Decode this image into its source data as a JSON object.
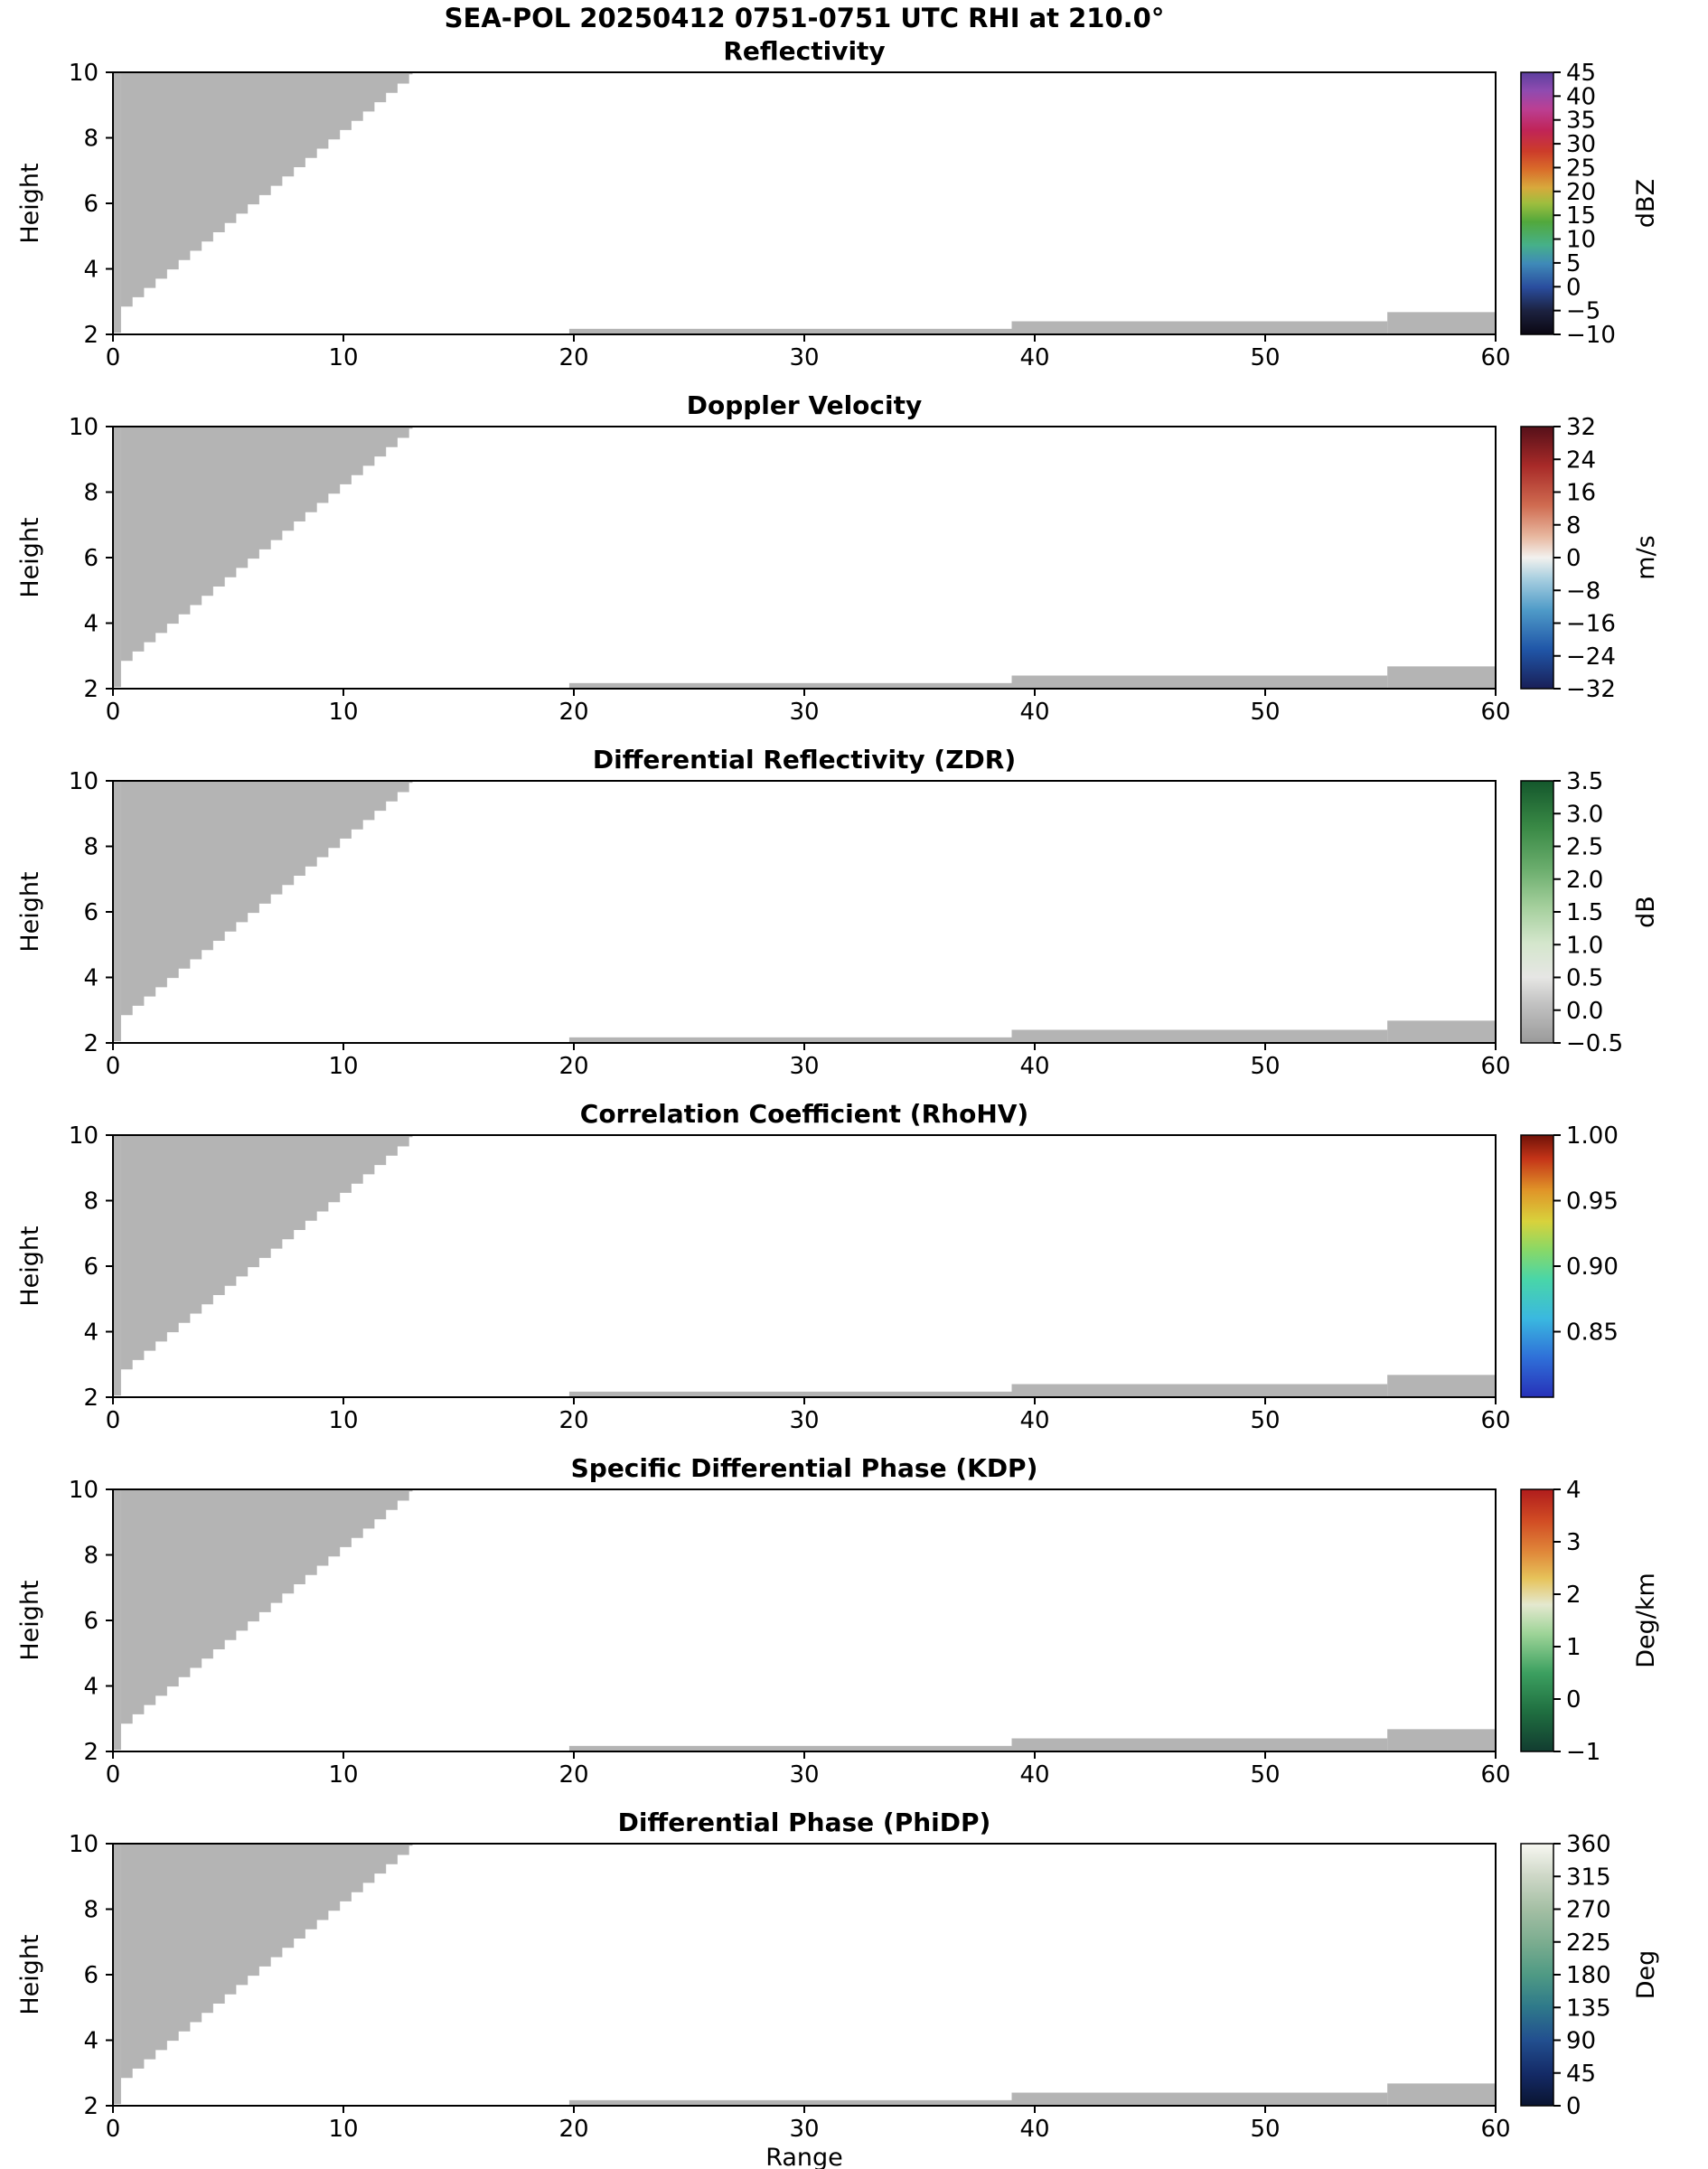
{
  "suptitle": "SEA-POL 20250412 0751-0751 UTC RHI at 210.0°",
  "chart_data": {
    "type": "heatmap",
    "description": "Radar RHI quicklook with 6 vertically stacked panels sharing x (Range 0-60) and y (Height 2-10). Only gray no-data mask regions are visible: a stepped wedge in the upper-left and thin ground strips near the bottom right. Each panel has its own colorbar.",
    "xlabel": "Range",
    "ylabel": "Height",
    "xlim": [
      0,
      60
    ],
    "ylim": [
      2,
      10
    ],
    "xticks": [
      0,
      10,
      20,
      30,
      40,
      50,
      60
    ],
    "yticks": [
      2,
      4,
      6,
      8,
      10
    ],
    "mask_color": "#b4b4b4",
    "mask_regions": {
      "left_wedge": {
        "x_start": 0.35,
        "y_start": 2.85,
        "slope": 0.567,
        "x_end": 13,
        "y_top": 10,
        "step": 0.5
      },
      "left_column": {
        "x": [
          0,
          0.35
        ],
        "y": [
          2.05,
          10
        ]
      },
      "ground_strips": [
        {
          "x": [
            19.8,
            39.0
          ],
          "y": [
            2.0,
            2.17
          ]
        },
        {
          "x": [
            39.0,
            55.3
          ],
          "y": [
            2.0,
            2.4
          ]
        },
        {
          "x": [
            55.3,
            60.0
          ],
          "y": [
            2.0,
            2.68
          ]
        }
      ]
    },
    "panels": [
      {
        "title": "Reflectivity",
        "units": "dBZ",
        "vmin": -10,
        "vmax": 45,
        "tick_values": [
          45,
          40,
          35,
          30,
          25,
          20,
          15,
          10,
          5,
          0,
          -5,
          -10
        ],
        "tick_labels": [
          "45",
          "40",
          "35",
          "30",
          "25",
          "20",
          "15",
          "10",
          "5",
          "0",
          "−5",
          "−10"
        ],
        "gradient": [
          [
            0,
            "#0b0712"
          ],
          [
            0.09,
            "#1c2240"
          ],
          [
            0.18,
            "#2a4d9e"
          ],
          [
            0.27,
            "#3f8ab8"
          ],
          [
            0.34,
            "#46b08a"
          ],
          [
            0.43,
            "#52a83c"
          ],
          [
            0.5,
            "#9ebe3e"
          ],
          [
            0.56,
            "#d8a93c"
          ],
          [
            0.63,
            "#d96c2a"
          ],
          [
            0.7,
            "#cc3b2a"
          ],
          [
            0.78,
            "#c02458"
          ],
          [
            0.86,
            "#bb3f93"
          ],
          [
            0.93,
            "#8f4bb0"
          ],
          [
            1,
            "#5c3f9e"
          ]
        ]
      },
      {
        "title": "Doppler Velocity",
        "units": "m/s",
        "vmin": -32,
        "vmax": 32,
        "tick_values": [
          32,
          24,
          16,
          8,
          0,
          -8,
          -16,
          -24,
          -32
        ],
        "tick_labels": [
          "32",
          "24",
          "16",
          "8",
          "0",
          "−8",
          "−16",
          "−24",
          "−32"
        ],
        "gradient": [
          [
            0,
            "#191f57"
          ],
          [
            0.15,
            "#2056a8"
          ],
          [
            0.3,
            "#4f9bc8"
          ],
          [
            0.42,
            "#a8cfe0"
          ],
          [
            0.5,
            "#f2f1ee"
          ],
          [
            0.58,
            "#e8b8a0"
          ],
          [
            0.7,
            "#cf6b50"
          ],
          [
            0.85,
            "#a82a28"
          ],
          [
            1,
            "#551019"
          ]
        ]
      },
      {
        "title": "Differential Reflectivity (ZDR)",
        "units": "dB",
        "vmin": -0.5,
        "vmax": 3.5,
        "tick_values": [
          3.5,
          3.0,
          2.5,
          2.0,
          1.5,
          1.0,
          0.5,
          0.0,
          -0.5
        ],
        "tick_labels": [
          "3.5",
          "3.0",
          "2.5",
          "2.0",
          "1.5",
          "1.0",
          "0.5",
          "0.0",
          "−0.5"
        ],
        "gradient": [
          [
            0,
            "#9a9a9a"
          ],
          [
            0.15,
            "#c2c2c2"
          ],
          [
            0.25,
            "#e6e6e4"
          ],
          [
            0.38,
            "#d4e6cc"
          ],
          [
            0.52,
            "#a4cf9c"
          ],
          [
            0.66,
            "#6cae6e"
          ],
          [
            0.82,
            "#3a8a46"
          ],
          [
            1,
            "#14572c"
          ]
        ]
      },
      {
        "title": "Correlation Coefficient (RhoHV)",
        "units": "",
        "vmin": 0.8,
        "vmax": 1.0,
        "tick_values": [
          1.0,
          0.95,
          0.9,
          0.85
        ],
        "tick_labels": [
          "1.00",
          "0.95",
          "0.90",
          "0.85"
        ],
        "gradient": [
          [
            0,
            "#2731b8"
          ],
          [
            0.15,
            "#2f6fd8"
          ],
          [
            0.3,
            "#3ab8e0"
          ],
          [
            0.45,
            "#49d6a8"
          ],
          [
            0.57,
            "#8ed863"
          ],
          [
            0.67,
            "#d8d23c"
          ],
          [
            0.79,
            "#e09428"
          ],
          [
            0.91,
            "#c43418"
          ],
          [
            1,
            "#701208"
          ]
        ]
      },
      {
        "title": "Specific Differential Phase (KDP)",
        "units": "Deg/km",
        "vmin": -1,
        "vmax": 4,
        "tick_values": [
          4,
          3,
          2,
          1,
          0,
          -1
        ],
        "tick_labels": [
          "4",
          "3",
          "2",
          "1",
          "0",
          "−1"
        ],
        "gradient": [
          [
            0,
            "#123c30"
          ],
          [
            0.15,
            "#1f6e40"
          ],
          [
            0.3,
            "#3ca060"
          ],
          [
            0.45,
            "#9ed498"
          ],
          [
            0.56,
            "#e4e8cf"
          ],
          [
            0.66,
            "#e6c35a"
          ],
          [
            0.76,
            "#e0883a"
          ],
          [
            0.88,
            "#d14c24"
          ],
          [
            1,
            "#b01c1c"
          ]
        ]
      },
      {
        "title": "Differential Phase (PhiDP)",
        "units": "Deg",
        "vmin": 0,
        "vmax": 360,
        "tick_values": [
          360,
          315,
          270,
          225,
          180,
          135,
          90,
          45,
          0
        ],
        "tick_labels": [
          "360",
          "315",
          "270",
          "225",
          "180",
          "135",
          "90",
          "45",
          "0"
        ],
        "gradient": [
          [
            0,
            "#0a1430"
          ],
          [
            0.12,
            "#142a66"
          ],
          [
            0.25,
            "#224f8f"
          ],
          [
            0.38,
            "#2f7a8a"
          ],
          [
            0.5,
            "#4f9a84"
          ],
          [
            0.62,
            "#7aac8f"
          ],
          [
            0.75,
            "#a4bfa4"
          ],
          [
            0.88,
            "#cfd8c8"
          ],
          [
            1,
            "#f8f8f2"
          ]
        ]
      }
    ]
  }
}
